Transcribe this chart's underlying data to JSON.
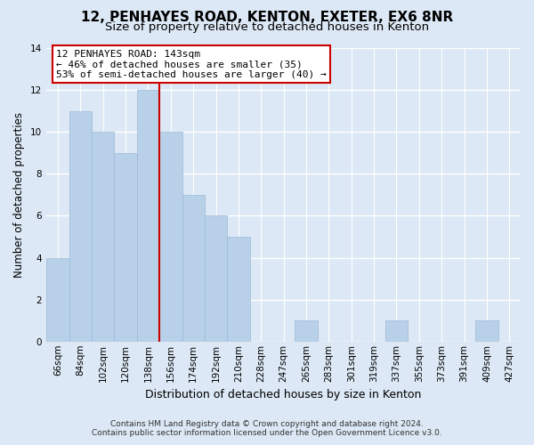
{
  "title": "12, PENHAYES ROAD, KENTON, EXETER, EX6 8NR",
  "subtitle": "Size of property relative to detached houses in Kenton",
  "xlabel": "Distribution of detached houses by size in Kenton",
  "ylabel": "Number of detached properties",
  "bar_labels": [
    "66sqm",
    "84sqm",
    "102sqm",
    "120sqm",
    "138sqm",
    "156sqm",
    "174sqm",
    "192sqm",
    "210sqm",
    "228sqm",
    "247sqm",
    "265sqm",
    "283sqm",
    "301sqm",
    "319sqm",
    "337sqm",
    "355sqm",
    "373sqm",
    "391sqm",
    "409sqm",
    "427sqm"
  ],
  "bar_values": [
    4,
    11,
    10,
    9,
    12,
    10,
    7,
    6,
    5,
    0,
    0,
    1,
    0,
    0,
    0,
    1,
    0,
    0,
    0,
    1,
    0
  ],
  "bar_color": "#b8d0e8",
  "bar_edge_color": "#9dbad8",
  "vline_color": "#cc0000",
  "vline_x": 4.5,
  "ylim": [
    0,
    14
  ],
  "yticks": [
    0,
    2,
    4,
    6,
    8,
    10,
    12,
    14
  ],
  "annotation_title": "12 PENHAYES ROAD: 143sqm",
  "annotation_line1": "← 46% of detached houses are smaller (35)",
  "annotation_line2": "53% of semi-detached houses are larger (40) →",
  "annotation_box_facecolor": "#ffffff",
  "annotation_box_edgecolor": "#cc0000",
  "footer_line1": "Contains HM Land Registry data © Crown copyright and database right 2024.",
  "footer_line2": "Contains public sector information licensed under the Open Government Licence v3.0.",
  "background_color": "#dce8f5",
  "plot_bg_color": "#dce8f5",
  "title_fontsize": 11,
  "subtitle_fontsize": 9.5,
  "ylabel_fontsize": 8.5,
  "xlabel_fontsize": 9,
  "tick_fontsize": 7.5,
  "annotation_fontsize": 8,
  "footer_fontsize": 6.5
}
